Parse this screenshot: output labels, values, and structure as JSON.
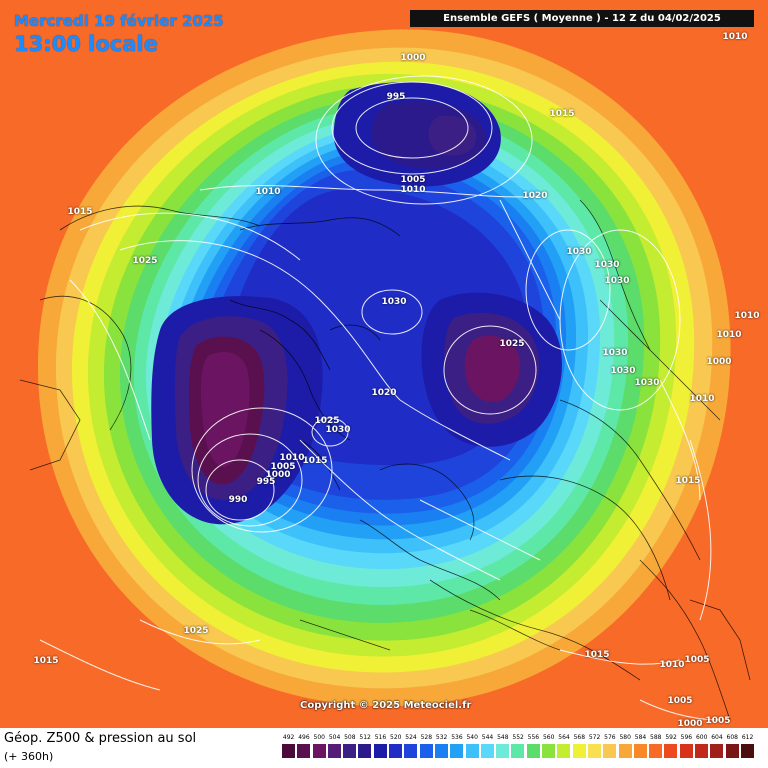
{
  "header": {
    "date_line": "Mercredi 19 février 2025",
    "time_line": "13:00 locale",
    "run_info": "Ensemble GEFS  ( Moyenne )  - 12 Z du 04/02/2025"
  },
  "copyright": "Copyright © 2025 Meteociel.fr",
  "footer": {
    "parameter": "Géop. Z500 & pression au sol",
    "lead_time": "(+ 360h)"
  },
  "legend": {
    "values": [
      "492",
      "496",
      "500",
      "504",
      "508",
      "512",
      "516",
      "520",
      "524",
      "528",
      "532",
      "536",
      "540",
      "544",
      "548",
      "552",
      "556",
      "560",
      "564",
      "568",
      "572",
      "576",
      "580",
      "584",
      "588",
      "592",
      "596",
      "600",
      "604",
      "608",
      "612"
    ],
    "colors": [
      "#4a0a3a",
      "#5a0f4e",
      "#6a1462",
      "#561d78",
      "#3c1f84",
      "#2a1a8c",
      "#1c1ca8",
      "#1f2cc6",
      "#1e44dc",
      "#1b60ea",
      "#1a80f2",
      "#22a0f6",
      "#3ec0fa",
      "#5ad8fa",
      "#6eead8",
      "#5ee8a8",
      "#5cdc6a",
      "#8ae23c",
      "#c4ec30",
      "#f0f036",
      "#f8e050",
      "#f8c850",
      "#f8a838",
      "#f88828",
      "#f86a28",
      "#ee4a20",
      "#d8321c",
      "#c0281a",
      "#a0201a",
      "#7a1616",
      "#4a0e0e"
    ]
  },
  "isobar_labels": [
    {
      "text": "1010"
    },
    {
      "text": "1000"
    },
    {
      "text": "995"
    },
    {
      "text": "1015"
    },
    {
      "text": "1005"
    },
    {
      "text": "1010"
    },
    {
      "text": "1010"
    },
    {
      "text": "1020"
    },
    {
      "text": "1015"
    },
    {
      "text": "1025"
    },
    {
      "text": "1030"
    },
    {
      "text": "1030"
    },
    {
      "text": "1030"
    },
    {
      "text": "1030"
    },
    {
      "text": "1010"
    },
    {
      "text": "1010"
    },
    {
      "text": "1000"
    },
    {
      "text": "1025"
    },
    {
      "text": "1030"
    },
    {
      "text": "1030"
    },
    {
      "text": "1030"
    },
    {
      "text": "1020"
    },
    {
      "text": "1010"
    },
    {
      "text": "1025"
    },
    {
      "text": "1030"
    },
    {
      "text": "1015"
    },
    {
      "text": "1010"
    },
    {
      "text": "1005"
    },
    {
      "text": "1000"
    },
    {
      "text": "995"
    },
    {
      "text": "990"
    },
    {
      "text": "1015"
    },
    {
      "text": "1025"
    },
    {
      "text": "1015"
    },
    {
      "text": "1015"
    },
    {
      "text": "1010"
    },
    {
      "text": "1005"
    },
    {
      "text": "1005"
    },
    {
      "text": "1000"
    },
    {
      "text": "1005"
    }
  ]
}
